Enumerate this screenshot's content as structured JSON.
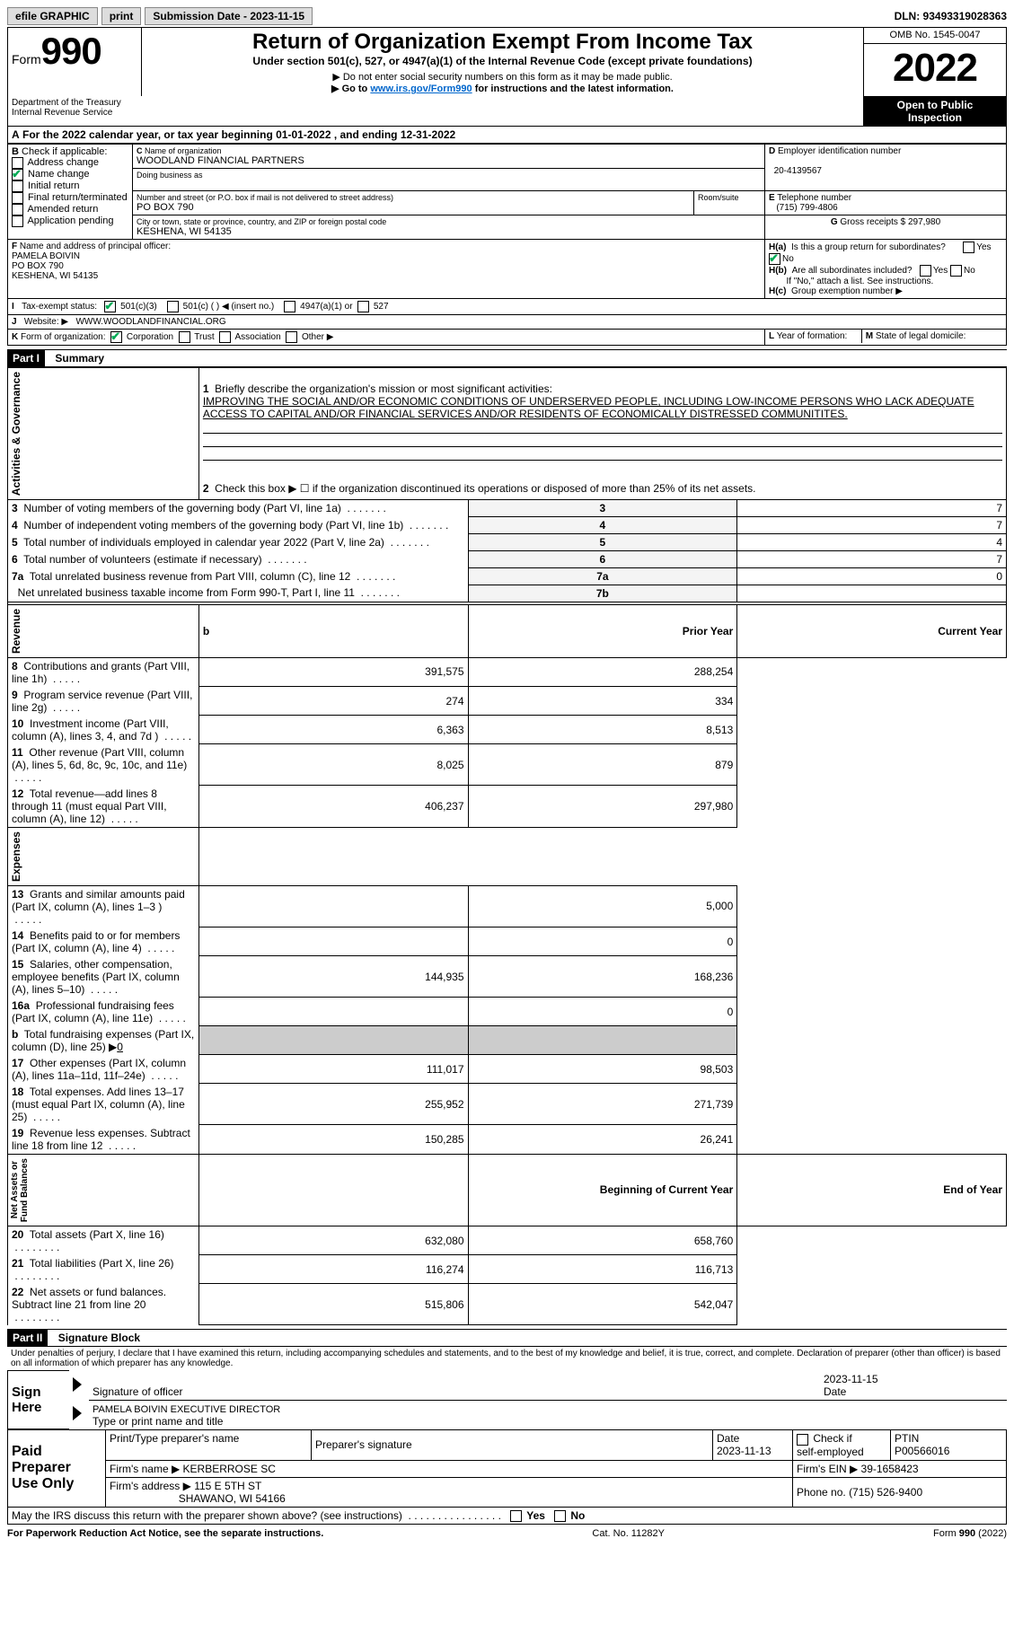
{
  "topbar": {
    "efile": "efile GRAPHIC",
    "print": "print",
    "submission_label": "Submission Date - 2023-11-15",
    "dln_label": "DLN: 93493319028363"
  },
  "header": {
    "form_word": "Form",
    "form_num": "990",
    "dept": "Department of the Treasury\nInternal Revenue Service",
    "title": "Return of Organization Exempt From Income Tax",
    "subtitle": "Under section 501(c), 527, or 4947(a)(1) of the Internal Revenue Code (except private foundations)",
    "note1": "▶ Do not enter social security numbers on this form as it may be made public.",
    "note2_pre": "▶ Go to ",
    "note2_link": "www.irs.gov/Form990",
    "note2_post": " for instructions and the latest information.",
    "omb": "OMB No. 1545-0047",
    "year": "2022",
    "open_inspect": "Open to Public\nInspection"
  },
  "section_a": {
    "a_text": "For the 2022 calendar year, or tax year beginning 01-01-2022    , and ending 12-31-2022",
    "b_label": "Check if applicable:",
    "b_items": [
      {
        "label": "Address change",
        "checked": false
      },
      {
        "label": "Name change",
        "checked": true
      },
      {
        "label": "Initial return",
        "checked": false
      },
      {
        "label": "Final return/terminated",
        "checked": false
      },
      {
        "label": "Amended return",
        "checked": false
      },
      {
        "label": "Application pending",
        "checked": false
      }
    ],
    "c_label": "Name of organization",
    "c_name": "WOODLAND FINANCIAL PARTNERS",
    "dba_label": "Doing business as",
    "street_label": "Number and street (or P.O. box if mail is not delivered to street address)",
    "room_label": "Room/suite",
    "street": "PO BOX 790",
    "city_label": "City or town, state or province, country, and ZIP or foreign postal code",
    "city": "KESHENA, WI  54135",
    "d_label": "Employer identification number",
    "d_ein": "20-4139567",
    "e_label": "Telephone number",
    "e_phone": "(715) 799-4806",
    "g_label": "Gross receipts $",
    "g_amount": "297,980",
    "f_label": "Name and address of principal officer:",
    "f_name": "PAMELA BOIVIN",
    "f_addr1": "PO BOX 790",
    "f_addr2": "KESHENA, WI  54135",
    "ha_label": "Is this a group return for subordinates?",
    "hb_label": "Are all subordinates included?",
    "h_note": "If \"No,\" attach a list. See instructions.",
    "hc_label": "Group exemption number ▶",
    "i_label": "Tax-exempt status:",
    "i_501c3": "501(c)(3)",
    "i_501c": "501(c) (   ) ◀ (insert no.)",
    "i_4947": "4947(a)(1) or",
    "i_527": "527",
    "j_label": "Website: ▶",
    "j_url": "WWW.WOODLANDFINANCIAL.ORG",
    "k_label": "Form of organization:",
    "k_corp": "Corporation",
    "k_trust": "Trust",
    "k_assoc": "Association",
    "k_other": "Other ▶",
    "l_label": "Year of formation:",
    "m_label": "State of legal domicile:"
  },
  "part1": {
    "header": "Part I",
    "title": "Summary",
    "line1_label": "Briefly describe the organization's mission or most significant activities:",
    "line1_text": "IMPROVING THE SOCIAL AND/OR ECONOMIC CONDITIONS OF UNDERSERVED PEOPLE, INCLUDING LOW-INCOME PERSONS WHO LACK ADEQUATE ACCESS TO CAPITAL AND/OR FINANCIAL SERVICES AND/OR RESIDENTS OF ECONOMICALLY DISTRESSED COMMUNITITES.",
    "line2_label": "Check this box ▶ ☐ if the organization discontinued its operations or disposed of more than 25% of its net assets.",
    "lines_ag": [
      {
        "n": "3",
        "label": "Number of voting members of the governing body (Part VI, line 1a)",
        "box": "3",
        "val": "7"
      },
      {
        "n": "4",
        "label": "Number of independent voting members of the governing body (Part VI, line 1b)",
        "box": "4",
        "val": "7"
      },
      {
        "n": "5",
        "label": "Total number of individuals employed in calendar year 2022 (Part V, line 2a)",
        "box": "5",
        "val": "4"
      },
      {
        "n": "6",
        "label": "Total number of volunteers (estimate if necessary)",
        "box": "6",
        "val": "7"
      },
      {
        "n": "7a",
        "label": "Total unrelated business revenue from Part VIII, column (C), line 12",
        "box": "7a",
        "val": "0"
      },
      {
        "n": "",
        "label": "Net unrelated business taxable income from Form 990-T, Part I, line 11",
        "box": "7b",
        "val": ""
      }
    ],
    "col_prior": "Prior Year",
    "col_current": "Current Year",
    "revenue": [
      {
        "n": "8",
        "label": "Contributions and grants (Part VIII, line 1h)",
        "prior": "391,575",
        "curr": "288,254"
      },
      {
        "n": "9",
        "label": "Program service revenue (Part VIII, line 2g)",
        "prior": "274",
        "curr": "334"
      },
      {
        "n": "10",
        "label": "Investment income (Part VIII, column (A), lines 3, 4, and 7d )",
        "prior": "6,363",
        "curr": "8,513"
      },
      {
        "n": "11",
        "label": "Other revenue (Part VIII, column (A), lines 5, 6d, 8c, 9c, 10c, and 11e)",
        "prior": "8,025",
        "curr": "879"
      },
      {
        "n": "12",
        "label": "Total revenue—add lines 8 through 11 (must equal Part VIII, column (A), line 12)",
        "prior": "406,237",
        "curr": "297,980"
      }
    ],
    "expenses": [
      {
        "n": "13",
        "label": "Grants and similar amounts paid (Part IX, column (A), lines 1–3 )",
        "prior": "",
        "curr": "5,000"
      },
      {
        "n": "14",
        "label": "Benefits paid to or for members (Part IX, column (A), line 4)",
        "prior": "",
        "curr": "0"
      },
      {
        "n": "15",
        "label": "Salaries, other compensation, employee benefits (Part IX, column (A), lines 5–10)",
        "prior": "144,935",
        "curr": "168,236"
      },
      {
        "n": "16a",
        "label": "Professional fundraising fees (Part IX, column (A), line 11e)",
        "prior": "",
        "curr": "0"
      },
      {
        "n": "b",
        "label": "Total fundraising expenses (Part IX, column (D), line 25) ▶",
        "prior": "gray",
        "curr": "gray",
        "underline": "0"
      },
      {
        "n": "17",
        "label": "Other expenses (Part IX, column (A), lines 11a–11d, 11f–24e)",
        "prior": "111,017",
        "curr": "98,503"
      },
      {
        "n": "18",
        "label": "Total expenses. Add lines 13–17 (must equal Part IX, column (A), line 25)",
        "prior": "255,952",
        "curr": "271,739"
      },
      {
        "n": "19",
        "label": "Revenue less expenses. Subtract line 18 from line 12",
        "prior": "150,285",
        "curr": "26,241"
      }
    ],
    "col_boy": "Beginning of Current Year",
    "col_eoy": "End of Year",
    "netassets": [
      {
        "n": "20",
        "label": "Total assets (Part X, line 16)",
        "prior": "632,080",
        "curr": "658,760"
      },
      {
        "n": "21",
        "label": "Total liabilities (Part X, line 26)",
        "prior": "116,274",
        "curr": "116,713"
      },
      {
        "n": "22",
        "label": "Net assets or fund balances. Subtract line 21 from line 20",
        "prior": "515,806",
        "curr": "542,047"
      }
    ],
    "side_ag": "Activities & Governance",
    "side_rev": "Revenue",
    "side_exp": "Expenses",
    "side_net": "Net Assets or\nFund Balances"
  },
  "part2": {
    "header": "Part II",
    "title": "Signature Block",
    "jurat": "Under penalties of perjury, I declare that I have examined this return, including accompanying schedules and statements, and to the best of my knowledge and belief, it is true, correct, and complete. Declaration of preparer (other than officer) is based on all information of which preparer has any knowledge.",
    "sign_here": "Sign\nHere",
    "sig_officer_label": "Signature of officer",
    "sig_date": "2023-11-15",
    "date_label": "Date",
    "officer_name": "PAMELA BOIVIN  EXECUTIVE DIRECTOR",
    "officer_type_label": "Type or print name and title",
    "paid_prep": "Paid\nPreparer\nUse Only",
    "prep_name_label": "Print/Type preparer's name",
    "prep_sig_label": "Preparer's signature",
    "prep_date_label": "Date",
    "prep_date": "2023-11-13",
    "check_self": "Check ☐ if self-employed",
    "ptin_label": "PTIN",
    "ptin": "P00566016",
    "firm_name_label": "Firm's name      ▶",
    "firm_name": "KERBERROSE SC",
    "firm_ein_label": "Firm's EIN ▶",
    "firm_ein": "39-1658423",
    "firm_addr_label": "Firm's address ▶",
    "firm_addr1": "115 E 5TH ST",
    "firm_addr2": "SHAWANO, WI  54166",
    "phone_label": "Phone no.",
    "phone": "(715) 526-9400",
    "discuss": "May the IRS discuss this return with the preparer shown above? (see instructions)",
    "yes": "Yes",
    "no": "No"
  },
  "footer": {
    "pra": "For Paperwork Reduction Act Notice, see the separate instructions.",
    "cat": "Cat. No. 11282Y",
    "form": "Form 990 (2022)"
  }
}
